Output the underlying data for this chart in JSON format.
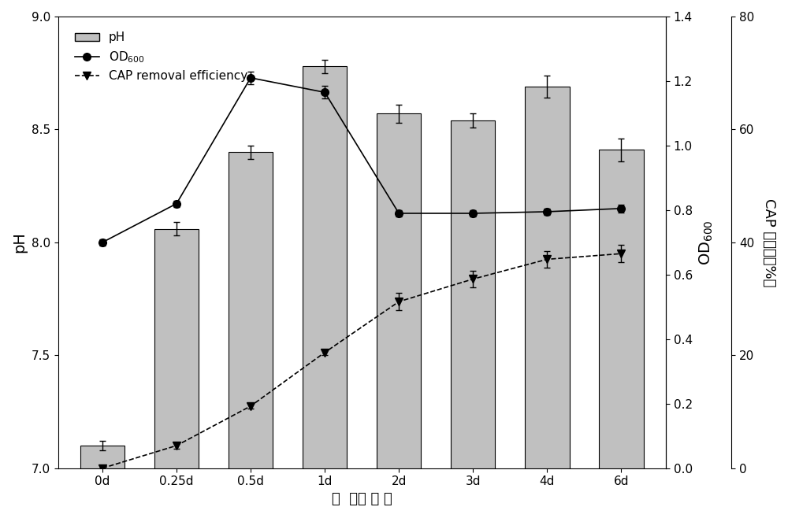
{
  "x_labels": [
    "0d",
    "0.25d",
    "0.5d",
    "1d",
    "2d",
    "3d",
    "4d",
    "6d"
  ],
  "x_positions": [
    0,
    1,
    2,
    3,
    4,
    5,
    6,
    7
  ],
  "bar_values": [
    7.1,
    8.06,
    8.4,
    8.78,
    8.57,
    8.54,
    8.69,
    8.41
  ],
  "bar_errors": [
    0.02,
    0.03,
    0.03,
    0.03,
    0.04,
    0.03,
    0.05,
    0.05
  ],
  "bar_color": "#c0c0c0",
  "bar_edgecolor": "#000000",
  "od600_values": [
    0.7,
    0.82,
    1.21,
    1.165,
    0.79,
    0.79,
    0.795,
    0.805
  ],
  "od600_errors": [
    0.01,
    0.01,
    0.02,
    0.02,
    0.01,
    0.01,
    0.01,
    0.012
  ],
  "cap_values": [
    0.0,
    4.0,
    11.0,
    20.5,
    29.5,
    33.5,
    37.0,
    38.0
  ],
  "cap_errors": [
    0.3,
    0.5,
    0.5,
    0.5,
    1.5,
    1.5,
    1.5,
    1.5
  ],
  "ph_ylim": [
    7.0,
    9.0
  ],
  "ph_yticks": [
    7.0,
    7.5,
    8.0,
    8.5,
    9.0
  ],
  "ph_ylabel": "pH",
  "od600_ylim": [
    0.0,
    1.4
  ],
  "od600_yticks": [
    0.0,
    0.2,
    0.4,
    0.6,
    0.8,
    1.0,
    1.2,
    1.4
  ],
  "od600_ylabel": "OD$_{600}$",
  "cap_ylim": [
    0,
    80
  ],
  "cap_yticks": [
    0,
    20,
    40,
    60,
    80
  ],
  "cap_ylabel": "CAP 去除率（%）",
  "xlabel": "时  间（ 天 ）",
  "legend_pH_label": "pH",
  "legend_od600_label": "OD$_{600}$",
  "legend_cap_label": "CAP removal efficiency",
  "background_color": "#ffffff",
  "bar_width": 0.6
}
